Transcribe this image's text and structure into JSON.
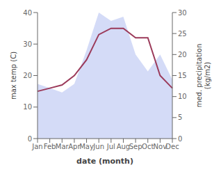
{
  "chart_data": {
    "type": "line",
    "xlabel": "date (month)",
    "ylabel": "max temp (C)",
    "y2label": "med. precipitation\n(kg/m2)",
    "categories": [
      "Jan",
      "Feb",
      "Mar",
      "Apr",
      "May",
      "Jun",
      "Jul",
      "Aug",
      "Sep",
      "Oct",
      "Nov",
      "Dec"
    ],
    "series": [
      {
        "type": "area",
        "axis": "y2",
        "color": "#b0bef0",
        "values": [
          13,
          12,
          11,
          13,
          21,
          30,
          28,
          29,
          20,
          16,
          20,
          14
        ]
      },
      {
        "type": "line",
        "color": "#9b3a5a",
        "values": [
          15,
          16,
          17,
          20,
          25,
          33,
          35,
          35,
          32,
          32,
          20,
          16
        ]
      }
    ],
    "ylim": [
      0,
      40
    ],
    "yticks": [
      0,
      10,
      20,
      30,
      40
    ],
    "y2lim": [
      0,
      30
    ],
    "y2ticks": [
      0,
      5,
      10,
      15,
      20,
      25,
      30
    ],
    "grid": false
  }
}
